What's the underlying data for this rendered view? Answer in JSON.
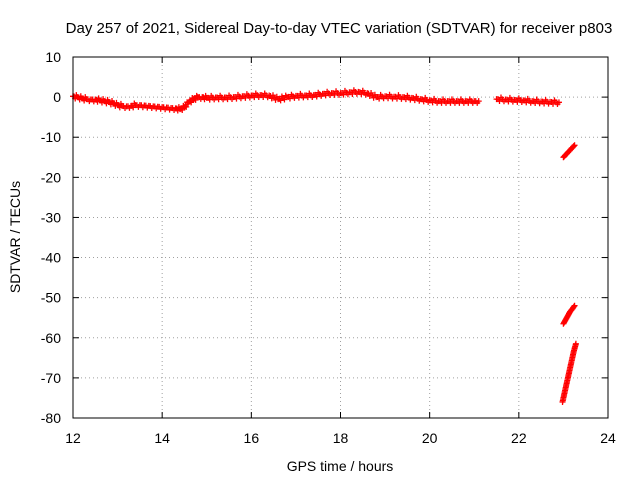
{
  "chart_data": {
    "type": "scatter",
    "title": "Day 257 of 2021, Sidereal Day-to-day VTEC variation (SDTVAR) for receiver p803",
    "xlabel": "GPS time / hours",
    "ylabel": "SDTVAR / TECUs",
    "xlim": [
      12,
      24
    ],
    "ylim": [
      -80,
      10
    ],
    "xticks": [
      "12",
      "14",
      "16",
      "18",
      "20",
      "22",
      "24"
    ],
    "yticks": [
      "10",
      "0",
      "-10",
      "-20",
      "-30",
      "-40",
      "-50",
      "-60",
      "-70",
      "-80"
    ],
    "grid": true,
    "marker": "plus",
    "color": "#ff0000",
    "series": [
      {
        "x": [
          12.0,
          12.1,
          12.2,
          12.3,
          12.4,
          12.5,
          12.6,
          12.7,
          12.8,
          12.9,
          13.0,
          13.1,
          13.2,
          13.3,
          13.4,
          13.5,
          13.6,
          13.7,
          13.8,
          13.9,
          14.0,
          14.1,
          14.2,
          14.3,
          14.4,
          14.5,
          14.6,
          14.7,
          14.8,
          14.9,
          15.0,
          15.2,
          15.4,
          15.6,
          15.8,
          16.0,
          16.2,
          16.4,
          16.6,
          16.8,
          17.0,
          17.2,
          17.4,
          17.6,
          17.8,
          18.0,
          18.2,
          18.4,
          18.6,
          18.8,
          19.0,
          19.2,
          19.4,
          19.6,
          19.8,
          20.0,
          20.2,
          20.4,
          20.6,
          20.8,
          21.0,
          21.1,
          21.5,
          21.7,
          21.9,
          22.1,
          22.3,
          22.5,
          22.7,
          22.9
        ],
        "y": [
          0.2,
          0.0,
          -0.3,
          -0.5,
          -0.6,
          -0.6,
          -0.8,
          -1.0,
          -1.2,
          -1.5,
          -2.0,
          -2.2,
          -2.3,
          -2.2,
          -2.0,
          -2.0,
          -2.1,
          -2.2,
          -2.3,
          -2.4,
          -2.5,
          -2.6,
          -2.7,
          -2.8,
          -3.0,
          -2.5,
          -1.2,
          -0.5,
          0.0,
          0.0,
          -0.2,
          -0.1,
          -0.1,
          0.0,
          0.2,
          0.4,
          0.5,
          0.4,
          -0.5,
          0.0,
          0.3,
          0.4,
          0.5,
          0.8,
          1.0,
          1.0,
          1.2,
          1.3,
          1.0,
          0.0,
          0.2,
          0.1,
          0.0,
          -0.2,
          -0.5,
          -0.8,
          -1.0,
          -1.0,
          -1.0,
          -1.0,
          -1.0,
          -1.0,
          -0.5,
          -0.6,
          -0.7,
          -0.8,
          -1.0,
          -1.1,
          -1.2,
          -1.3
        ]
      },
      {
        "x": [
          23.0,
          23.05,
          23.1,
          23.15,
          23.2,
          23.25
        ],
        "y": [
          -15,
          -14.4,
          -13.8,
          -13.2,
          -12.6,
          -12
        ]
      },
      {
        "x": [
          23.0,
          23.05,
          23.1,
          23.15,
          23.2,
          23.25
        ],
        "y": [
          -56.5,
          -55.5,
          -54.5,
          -53.5,
          -52.8,
          -52
        ]
      },
      {
        "x": [
          22.98,
          23.03,
          23.08,
          23.13,
          23.18,
          23.23,
          23.28
        ],
        "y": [
          -76,
          -73.5,
          -71,
          -68.5,
          -66,
          -63.5,
          -61.5
        ]
      }
    ]
  }
}
